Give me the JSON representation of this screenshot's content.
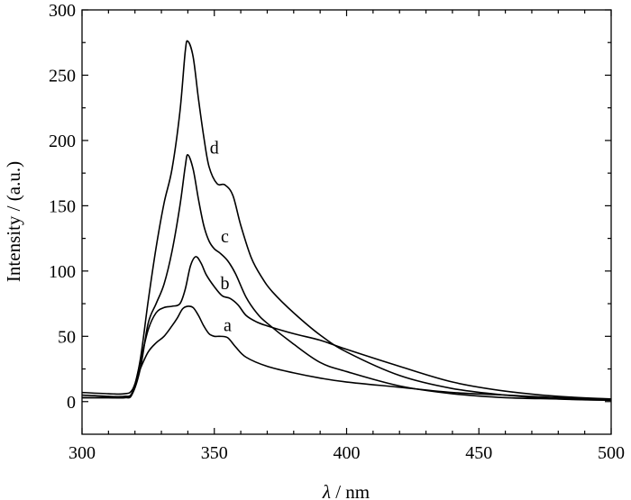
{
  "chart_data": {
    "type": "line",
    "xlabel_symbol": "λ",
    "xlabel_unit": " / nm",
    "ylabel": "Intensity / (a.u.)",
    "xlim": [
      300,
      500
    ],
    "ylim": [
      -25,
      300
    ],
    "x_ticks": [
      300,
      350,
      400,
      450,
      500
    ],
    "y_ticks": [
      0,
      50,
      100,
      150,
      200,
      250,
      300
    ],
    "x_minor_step": 10,
    "y_minor_step": 25,
    "grid": false,
    "series": [
      {
        "name": "a",
        "x": [
          300,
          310,
          316,
          319,
          322,
          325,
          328,
          331,
          334,
          336,
          338,
          340,
          342,
          344,
          346,
          348,
          350,
          352,
          355,
          358,
          362,
          370,
          380,
          390,
          400,
          420,
          440,
          460,
          480,
          500
        ],
        "y": [
          7,
          6,
          6,
          9,
          25,
          38,
          45,
          50,
          58,
          64,
          71,
          73,
          72,
          66,
          58,
          52,
          50,
          50,
          49,
          42,
          34,
          27,
          22,
          18,
          15,
          11,
          7,
          5,
          3,
          2
        ]
      },
      {
        "name": "b",
        "x": [
          300,
          310,
          316,
          319,
          322,
          325,
          328,
          331,
          334,
          337,
          339,
          341,
          343,
          345,
          347,
          350,
          353,
          356,
          359,
          362,
          366,
          370,
          380,
          390,
          400,
          420,
          440,
          460,
          480,
          500
        ],
        "y": [
          5,
          4,
          4,
          7,
          30,
          55,
          68,
          72,
          73,
          75,
          86,
          104,
          111,
          106,
          97,
          88,
          81,
          79,
          74,
          66,
          61,
          58,
          52,
          47,
          40,
          27,
          15,
          8,
          4,
          2
        ]
      },
      {
        "name": "c",
        "x": [
          300,
          310,
          316,
          319,
          322,
          325,
          328,
          331,
          334,
          337,
          339,
          340,
          342,
          344,
          346,
          348,
          350,
          352,
          355,
          358,
          362,
          366,
          370,
          380,
          390,
          400,
          420,
          440,
          460,
          480,
          500
        ],
        "y": [
          3,
          3,
          3,
          6,
          25,
          60,
          75,
          90,
          115,
          150,
          180,
          189,
          178,
          155,
          135,
          123,
          117,
          114,
          108,
          98,
          80,
          68,
          60,
          44,
          30,
          23,
          12,
          6,
          3,
          2,
          1
        ]
      },
      {
        "name": "d",
        "x": [
          300,
          310,
          316,
          319,
          322,
          325,
          328,
          331,
          334,
          337,
          339,
          340,
          342,
          344,
          346,
          348,
          351,
          354,
          357,
          360,
          364,
          368,
          372,
          380,
          390,
          400,
          420,
          440,
          460,
          480,
          500
        ],
        "y": [
          3,
          3,
          3,
          6,
          32,
          77,
          118,
          152,
          178,
          222,
          268,
          276,
          264,
          232,
          203,
          180,
          167,
          166,
          158,
          135,
          110,
          95,
          84,
          68,
          51,
          38,
          20,
          10,
          5,
          2,
          1
        ]
      }
    ],
    "annotations": [
      {
        "text": "a",
        "x": 355,
        "y": 54
      },
      {
        "text": "b",
        "x": 354,
        "y": 86
      },
      {
        "text": "c",
        "x": 354,
        "y": 122
      },
      {
        "text": "d",
        "x": 350,
        "y": 190
      }
    ]
  }
}
